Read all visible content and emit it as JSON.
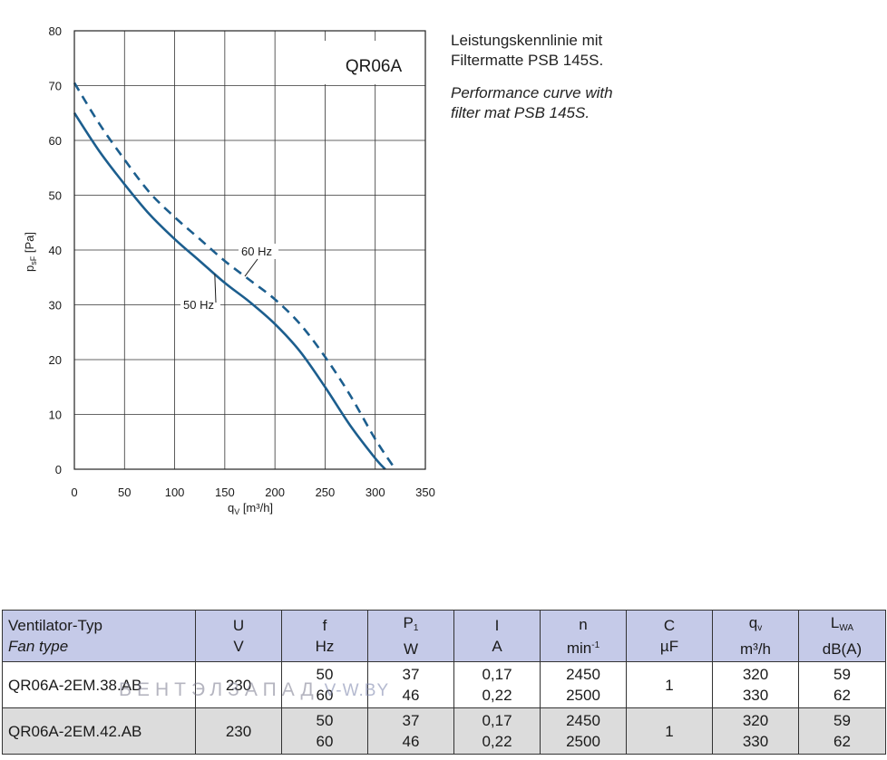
{
  "chart_data": {
    "type": "line",
    "title": "QR06A",
    "xlabel": "qV [m³/h]",
    "ylabel": "psF [Pa]",
    "xlim": [
      0,
      350
    ],
    "ylim": [
      0,
      80
    ],
    "xticks": [
      0,
      50,
      100,
      150,
      200,
      250,
      300,
      350
    ],
    "yticks": [
      0,
      10,
      20,
      30,
      40,
      50,
      60,
      70,
      80
    ],
    "grid": true,
    "series": [
      {
        "name": "50 Hz",
        "style": "solid",
        "color": "#1c5e8e",
        "points": [
          [
            0,
            65
          ],
          [
            25,
            58
          ],
          [
            50,
            52
          ],
          [
            75,
            46.5
          ],
          [
            100,
            42
          ],
          [
            125,
            38
          ],
          [
            150,
            34
          ],
          [
            175,
            30.5
          ],
          [
            200,
            26.5
          ],
          [
            225,
            21.5
          ],
          [
            250,
            15
          ],
          [
            275,
            8
          ],
          [
            300,
            2
          ],
          [
            310,
            0
          ]
        ]
      },
      {
        "name": "60 Hz",
        "style": "dashed",
        "color": "#1c5e8e",
        "points": [
          [
            0,
            70.5
          ],
          [
            25,
            63
          ],
          [
            50,
            56.5
          ],
          [
            75,
            50.5
          ],
          [
            100,
            46
          ],
          [
            125,
            42
          ],
          [
            150,
            38
          ],
          [
            175,
            34.5
          ],
          [
            200,
            31
          ],
          [
            225,
            26.5
          ],
          [
            250,
            20.5
          ],
          [
            275,
            13.5
          ],
          [
            300,
            5.5
          ],
          [
            320,
            0
          ]
        ]
      }
    ]
  },
  "description": {
    "de_line1": "Leistungskennlinie mit",
    "de_line2": "Filtermatte PSB 145S.",
    "en_line1": "Performance curve with",
    "en_line2": "filter mat  PSB 145S."
  },
  "table": {
    "headers": {
      "type_de": "Ventilator-Typ",
      "type_en": "Fan type",
      "u": "U",
      "u_unit": "V",
      "f": "f",
      "f_unit": "Hz",
      "p": "P",
      "p_sub": "1",
      "p_unit": "W",
      "i": "I",
      "i_unit": "A",
      "n": "n",
      "n_unit": "min",
      "n_sup": "-1",
      "c": "C",
      "c_unit": "µF",
      "q": "q",
      "q_sub": "v",
      "q_unit": "m³/h",
      "l": "L",
      "l_sub": "WA",
      "l_unit": "dB(A)"
    },
    "rows": [
      {
        "type": "QR06A-2EM.38.AB",
        "u": "230",
        "f1": "50",
        "f2": "60",
        "p1": "37",
        "p2": "46",
        "i1": "0,17",
        "i2": "0,22",
        "n1": "2450",
        "n2": "2500",
        "c": "1",
        "q1": "320",
        "q2": "330",
        "l1": "59",
        "l2": "62"
      },
      {
        "type": "QR06A-2EM.42.AB",
        "u": "230",
        "f1": "50",
        "f2": "60",
        "p1": "37",
        "p2": "46",
        "i1": "0,17",
        "i2": "0,22",
        "n1": "2450",
        "n2": "2500",
        "c": "1",
        "q1": "320",
        "q2": "330",
        "l1": "59",
        "l2": "62"
      }
    ]
  },
  "watermark": {
    "brand": "ВЕНТЭЛЗАПАД",
    "site": "V-W.BY"
  }
}
